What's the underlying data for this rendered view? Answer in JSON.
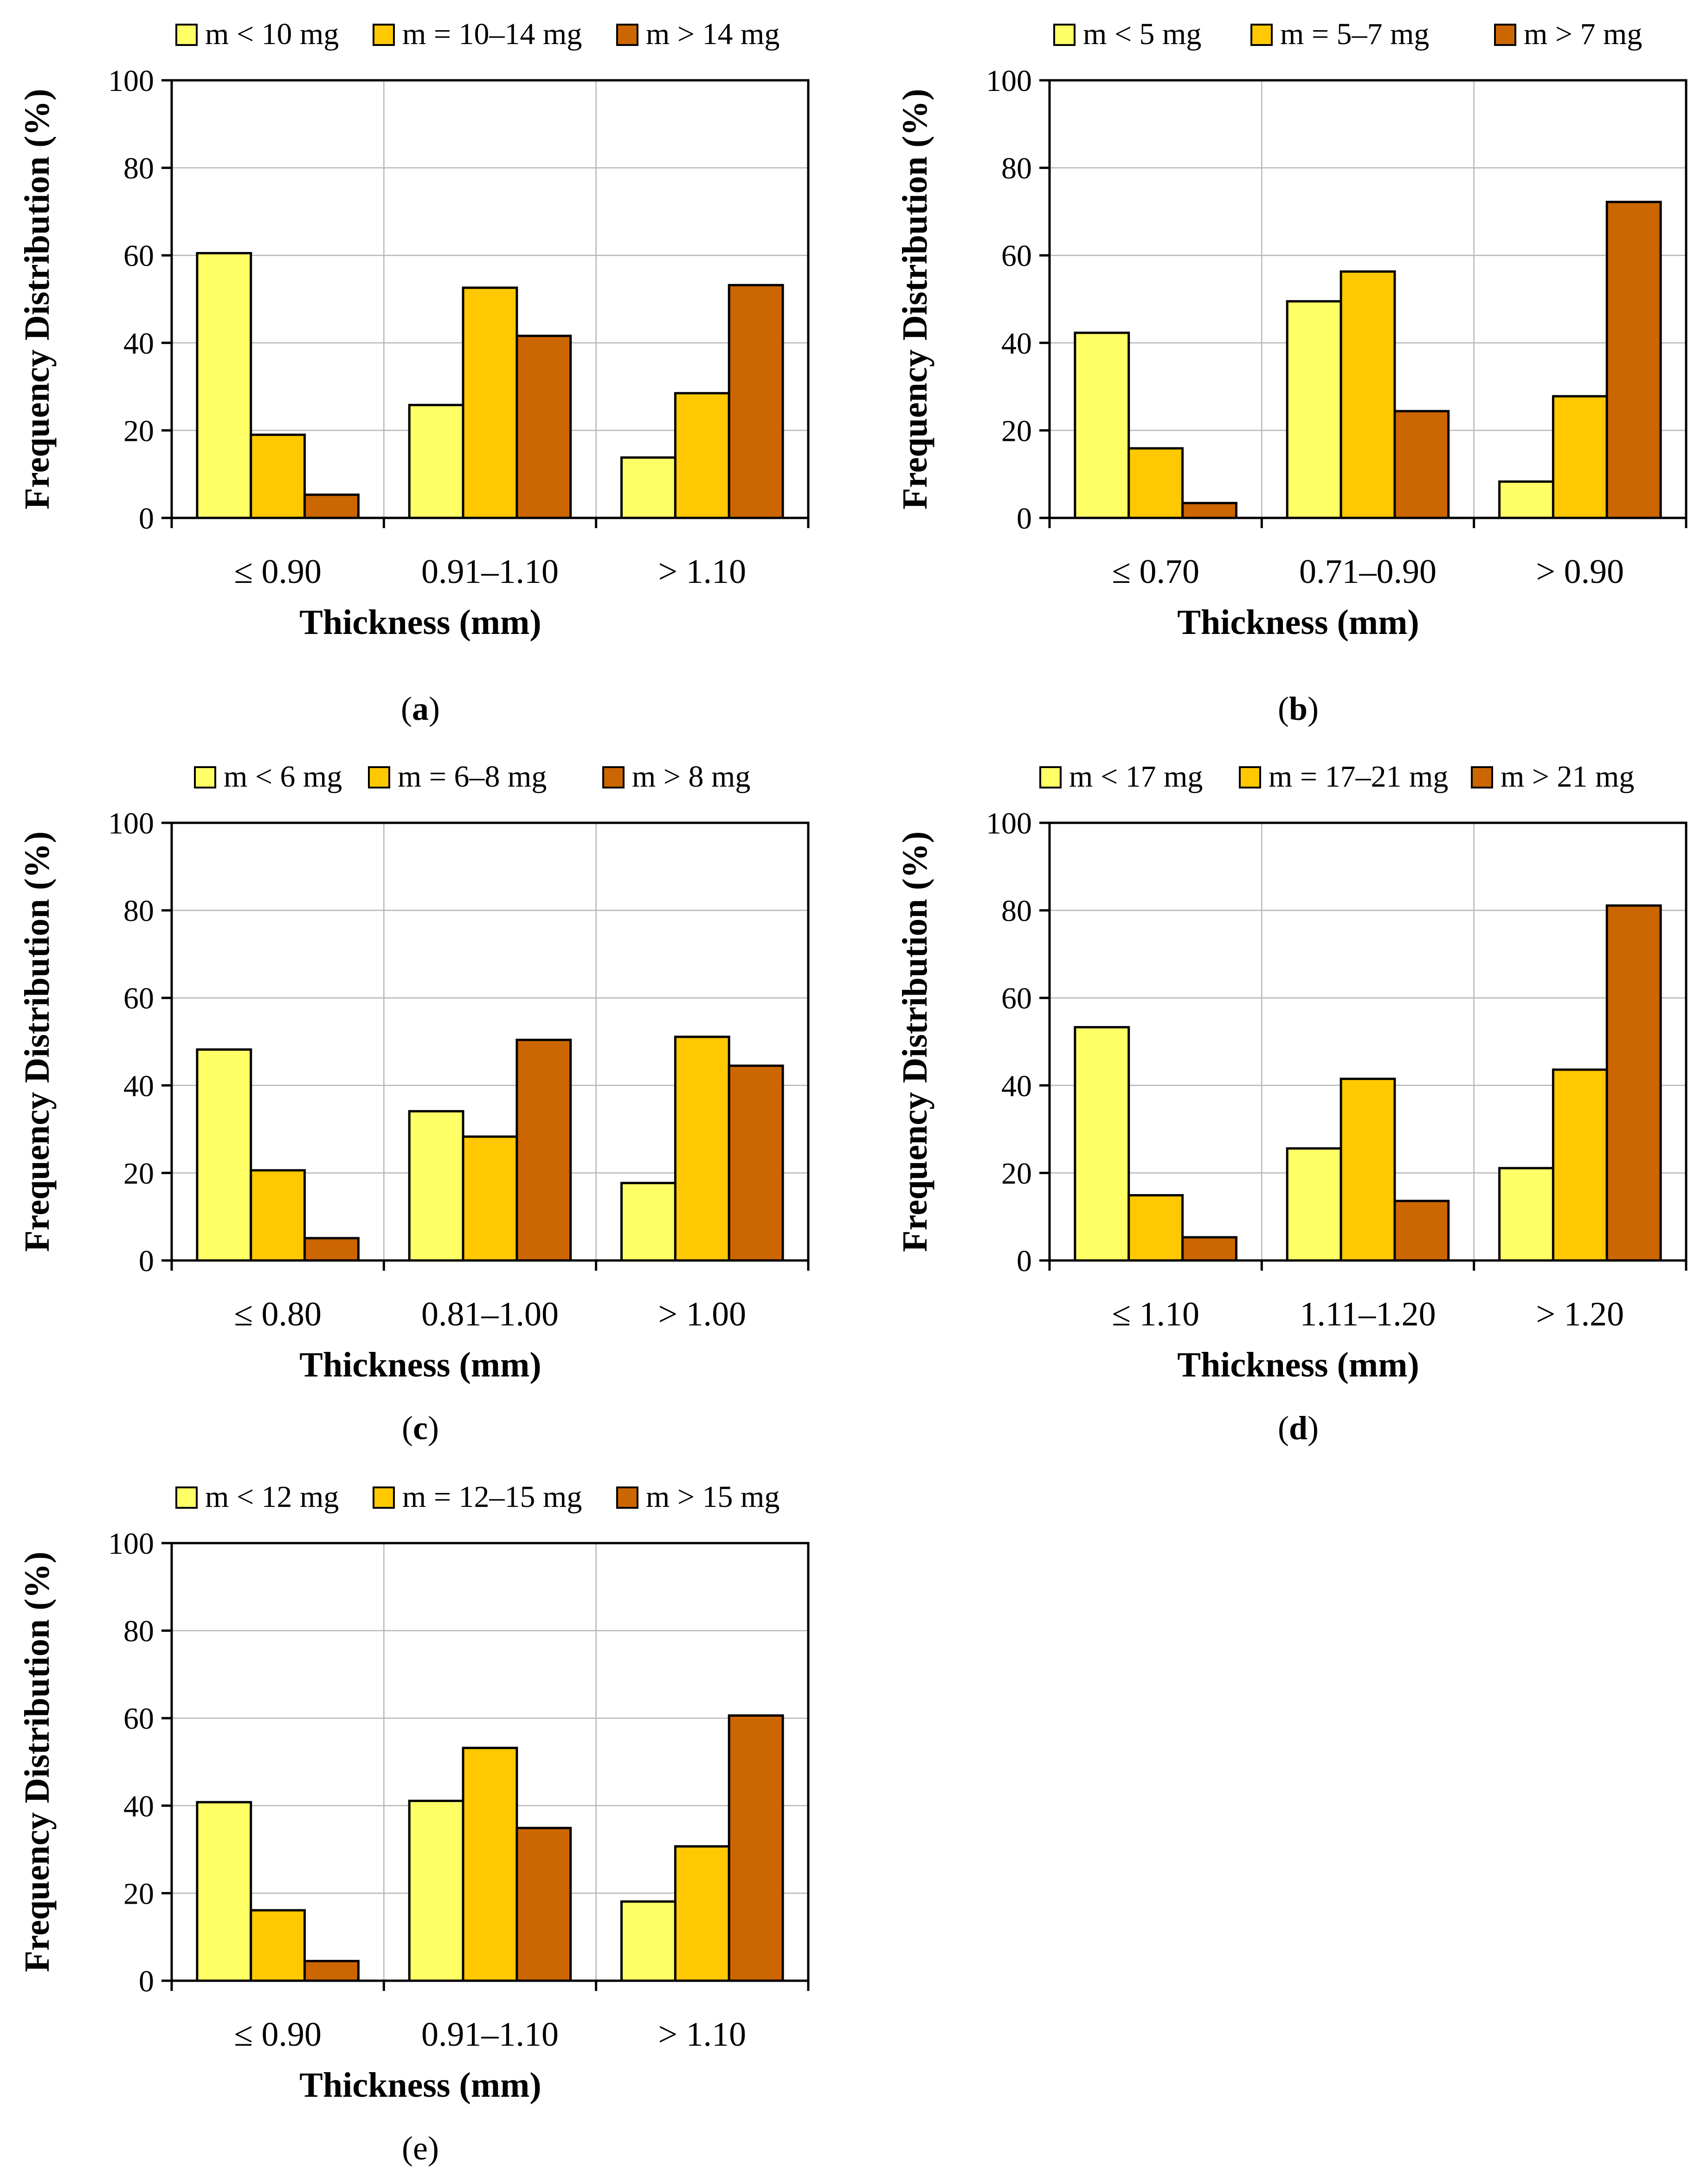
{
  "chart_data": [
    {
      "panel_label": "a",
      "type": "bar",
      "categories": [
        "≤ 0.90",
        "0.91–1.10",
        "> 1.10"
      ],
      "series": [
        {
          "name": "m < 10 mg",
          "values": [
            60.5,
            25.8,
            13.8
          ]
        },
        {
          "name": "m = 10–14 mg",
          "values": [
            19,
            52.6,
            28.5
          ]
        },
        {
          "name": "m > 14 mg",
          "values": [
            5.3,
            41.6,
            53.2
          ]
        }
      ],
      "xlabel": "Thickness (mm)",
      "ylabel": "Frequency Distribution (%)",
      "ylim": [
        0,
        100
      ],
      "yticks": [
        "0",
        "20",
        "40",
        "60",
        "80",
        "100"
      ],
      "grid": "vertical-between-categories",
      "legend": "top"
    },
    {
      "panel_label": "b",
      "type": "bar",
      "categories": [
        "≤ 0.70",
        "0.71–0.90",
        "> 0.90"
      ],
      "series": [
        {
          "name": "m < 5 mg",
          "values": [
            42.3,
            49.5,
            8.3
          ]
        },
        {
          "name": "m = 5–7 mg",
          "values": [
            15.9,
            56.3,
            27.8
          ]
        },
        {
          "name": "m > 7 mg",
          "values": [
            3.4,
            24.4,
            72.2
          ]
        }
      ],
      "xlabel": "Thickness (mm)",
      "ylabel": "Frequency Distribution (%)",
      "ylim": [
        0,
        100
      ],
      "yticks": [
        "0",
        "20",
        "40",
        "60",
        "80",
        "100"
      ],
      "grid": "vertical-between-categories",
      "legend": "top"
    },
    {
      "panel_label": "c",
      "type": "bar",
      "categories": [
        "≤ 0.80",
        "0.81–1.00",
        "> 1.00"
      ],
      "series": [
        {
          "name": "m < 6 mg",
          "values": [
            48.2,
            34.1,
            17.7
          ]
        },
        {
          "name": "m = 6–8 mg",
          "values": [
            20.6,
            28.3,
            51.1
          ]
        },
        {
          "name": "m > 8 mg",
          "values": [
            5.1,
            50.4,
            44.5
          ]
        }
      ],
      "xlabel": "Thickness (mm)",
      "ylabel": "Frequency Distribution (%)",
      "ylim": [
        0,
        100
      ],
      "yticks": [
        "0",
        "20",
        "40",
        "60",
        "80",
        "100"
      ],
      "grid": "vertical-between-categories",
      "legend": "top"
    },
    {
      "panel_label": "d",
      "type": "bar",
      "categories": [
        "≤ 1.10",
        "1.11–1.20",
        "> 1.20"
      ],
      "series": [
        {
          "name": "m < 17 mg",
          "values": [
            53.3,
            25.6,
            21.1
          ]
        },
        {
          "name": "m = 17–21 mg",
          "values": [
            14.9,
            41.5,
            43.6
          ]
        },
        {
          "name": "m > 21 mg",
          "values": [
            5.3,
            13.6,
            81.1
          ]
        }
      ],
      "xlabel": "Thickness (mm)",
      "ylabel": "Frequency Distribution (%)",
      "ylim": [
        0,
        100
      ],
      "yticks": [
        "0",
        "20",
        "40",
        "60",
        "80",
        "100"
      ],
      "grid": "vertical-between-categories",
      "legend": "top"
    },
    {
      "panel_label": "e",
      "type": "bar",
      "categories": [
        "≤ 0.90",
        "0.91–1.10",
        "> 1.10"
      ],
      "series": [
        {
          "name": "m < 12 mg",
          "values": [
            40.8,
            41.1,
            18.1
          ]
        },
        {
          "name": "m = 12–15 mg",
          "values": [
            16.1,
            53.2,
            30.7
          ]
        },
        {
          "name": "m > 15 mg",
          "values": [
            4.5,
            34.9,
            60.6
          ]
        }
      ],
      "xlabel": "Thickness (mm)",
      "ylabel": "Frequency Distribution (%)",
      "ylim": [
        0,
        100
      ],
      "yticks": [
        "0",
        "20",
        "40",
        "60",
        "80",
        "100"
      ],
      "grid": "vertical-between-categories",
      "legend": "top"
    }
  ],
  "colors": {
    "series": [
      "#FFFF66",
      "#FFC800",
      "#CC6600"
    ],
    "gridline": "#B7B7B7",
    "axis": "#000000"
  },
  "panel_letter_bold": [
    true,
    true,
    true,
    true,
    false
  ]
}
